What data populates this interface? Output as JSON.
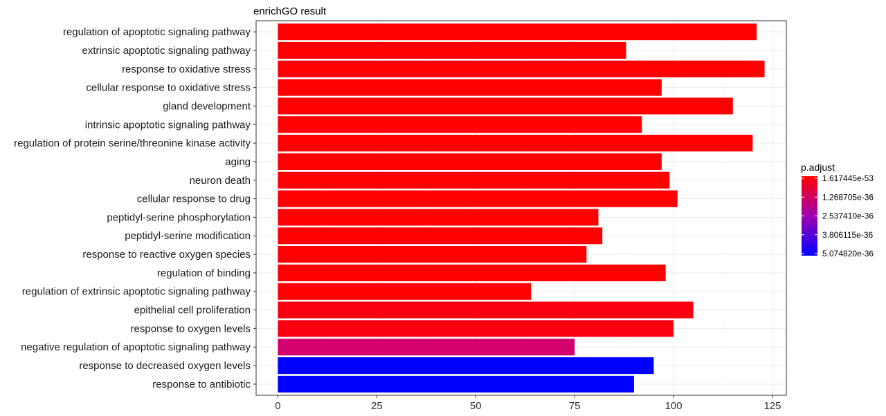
{
  "chart_data": {
    "type": "bar",
    "orientation": "horizontal",
    "title": "enrichGO result",
    "xlabel": "",
    "ylabel": "",
    "xlim": [
      -5.5,
      128.5
    ],
    "x_ticks": [
      0,
      25,
      50,
      75,
      100,
      125
    ],
    "grid": true,
    "categories": [
      "regulation of apoptotic signaling pathway",
      "extrinsic apoptotic signaling pathway",
      "response to oxidative stress",
      "cellular response to oxidative stress",
      "gland development",
      "intrinsic apoptotic signaling pathway",
      "regulation of protein serine/threonine kinase activity",
      "aging",
      "neuron death",
      "cellular response to drug",
      "peptidyl-serine phosphorylation",
      "peptidyl-serine modification",
      "response to reactive oxygen species",
      "regulation of binding",
      "regulation of extrinsic apoptotic signaling pathway",
      "epithelial cell proliferation",
      "response to oxygen levels",
      "negative regulation of apoptotic signaling pathway",
      "response to decreased oxygen levels",
      "response to antibiotic"
    ],
    "values": [
      121,
      88,
      123,
      97,
      115,
      92,
      120,
      97,
      99,
      101,
      81,
      82,
      78,
      98,
      64,
      105,
      100,
      75,
      95,
      90
    ],
    "bar_colors": [
      "#ff0000",
      "#ff0000",
      "#ff0000",
      "#ff0000",
      "#ff0000",
      "#ff0000",
      "#ff0000",
      "#ff0000",
      "#ff0000",
      "#ff0000",
      "#ff0000",
      "#ff0000",
      "#ff0000",
      "#ff0000",
      "#ff0000",
      "#f80010",
      "#f80010",
      "#d4006e",
      "#0000ff",
      "#0000ff"
    ],
    "legend": {
      "title": "p.adjust",
      "placement": "right",
      "labels": [
        "1.617445e-53",
        "1.268705e-36",
        "2.537410e-36",
        "3.806115e-36",
        "5.074820e-36"
      ],
      "gradient_top": "#ff0000",
      "gradient_mid": "#a000b0",
      "gradient_bottom": "#0000ff"
    }
  }
}
